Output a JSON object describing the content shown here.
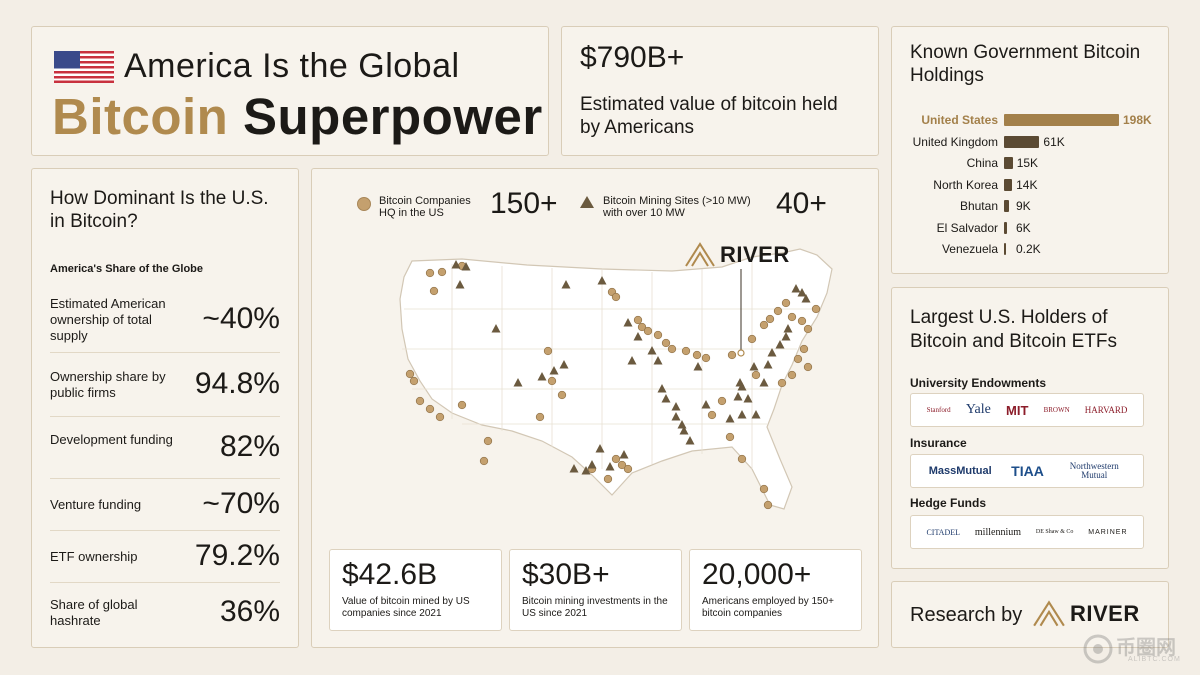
{
  "title": {
    "line1": "America Is the Global",
    "word_gold": "Bitcoin",
    "word_dark": "Superpower"
  },
  "headline_value": {
    "value": "$790B+",
    "caption": "Estimated value of bitcoin held by Americans"
  },
  "gov_holdings": {
    "title": "Known Government Bitcoin Holdings",
    "rows": [
      {
        "country": "United States",
        "label": "198K",
        "value": 198,
        "highlight": true
      },
      {
        "country": "United Kingdom",
        "label": "61K",
        "value": 61
      },
      {
        "country": "China",
        "label": "15K",
        "value": 15
      },
      {
        "country": "North Korea",
        "label": "14K",
        "value": 14
      },
      {
        "country": "Bhutan",
        "label": "9K",
        "value": 9
      },
      {
        "country": "El Salvador",
        "label": "6K",
        "value": 6
      },
      {
        "country": "Venezuela",
        "label": "0.2K",
        "value": 0.2
      }
    ]
  },
  "dominance": {
    "title": "How Dominant Is the U.S. in Bitcoin?",
    "subtitle": "America's Share of the Globe",
    "rows": [
      {
        "label": "Estimated American ownership of total supply",
        "value": "~40%"
      },
      {
        "label": "Ownership share by public firms",
        "value": "94.8%"
      },
      {
        "label": "Development funding",
        "value": "82%"
      },
      {
        "label": "Venture funding",
        "value": "~70%"
      },
      {
        "label": "ETF ownership",
        "value": "79.2%"
      },
      {
        "label": "Share of global hashrate",
        "value": "36%"
      }
    ]
  },
  "map": {
    "legend_companies_line1": "Bitcoin Companies",
    "legend_companies_line2": "HQ in the US",
    "legend_companies_value": "150+",
    "legend_mining_line1": "Bitcoin Mining Sites (>10 MW)",
    "legend_mining_line2": "with over 10 MW",
    "legend_mining_value": "40+",
    "brand": "RIVER",
    "stats": [
      {
        "value": "$42.6B",
        "caption": "Value of bitcoin mined by US companies since 2021"
      },
      {
        "value": "$30B+",
        "caption": "Bitcoin mining investments in the US since 2021"
      },
      {
        "value": "20,000+",
        "caption": "Americans employed by 150+ bitcoin companies"
      }
    ]
  },
  "holders": {
    "title": "Largest U.S. Holders of Bitcoin and Bitcoin ETFs",
    "university_label": "University Endowments",
    "university_logos": [
      "Stanford",
      "Yale",
      "MIT",
      "BROWN",
      "HARVARD"
    ],
    "insurance_label": "Insurance",
    "insurance_logos": [
      "MassMutual",
      "TIAA",
      "Northwestern Mutual"
    ],
    "hedge_label": "Hedge Funds",
    "hedge_logos": [
      "CITADEL",
      "millennium",
      "DE Shaw & Co",
      "MARINER"
    ]
  },
  "research": {
    "label": "Research by",
    "brand": "RIVER"
  },
  "watermark": {
    "text": "币圈网",
    "sub": "ALIBTC.COM"
  },
  "colors": {
    "gold": "#b08a4e",
    "dark_bar": "#5b4a33",
    "background": "#f3eee6"
  }
}
